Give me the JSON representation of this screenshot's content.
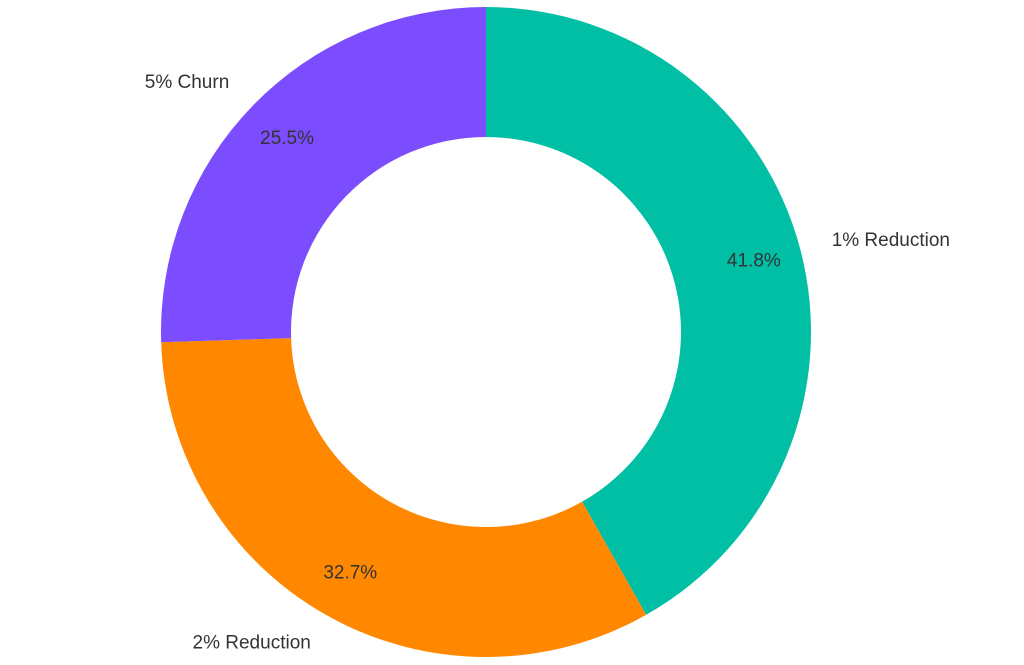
{
  "chart_data": {
    "type": "donut",
    "categories": [
      "1% Reduction",
      "2% Reduction",
      "5% Churn"
    ],
    "values": [
      41.8,
      32.7,
      25.5
    ],
    "value_labels": [
      "41.8%",
      "32.7%",
      "25.5%"
    ],
    "colors": [
      "#00bfa5",
      "#ff8800",
      "#7c4dff"
    ]
  }
}
